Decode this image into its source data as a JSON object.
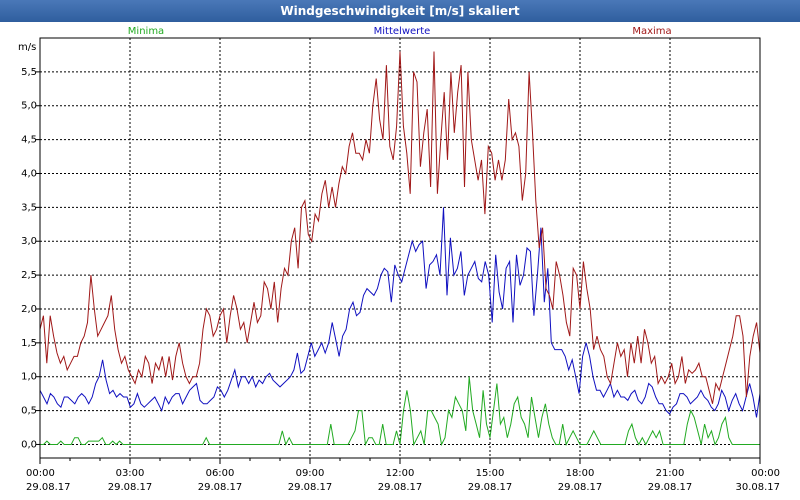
{
  "window": {
    "title": "Windgeschwindigkeit [m/s] skaliert"
  },
  "colors": {
    "min": "#22aa22",
    "avg": "#1010c0",
    "max": "#a01818",
    "grid": "#000000"
  },
  "chart_data": {
    "type": "line",
    "title": "Windgeschwindigkeit [m/s] skaliert",
    "ylabel": "m/s",
    "ylim": [
      -0.2,
      6.0
    ],
    "yticks": [
      0.0,
      0.5,
      1.0,
      1.5,
      2.0,
      2.5,
      3.0,
      3.5,
      4.0,
      4.5,
      5.0,
      5.5
    ],
    "ytick_labels": [
      "0,0",
      "0,5",
      "1,0",
      "1,5",
      "2,0",
      "2,5",
      "3,0",
      "3,5",
      "4,0",
      "4,5",
      "5,0",
      "5,5"
    ],
    "xlim_hours": [
      0,
      24
    ],
    "xticks": [
      {
        "h": 0,
        "time": "00:00",
        "date": "29.08.17"
      },
      {
        "h": 3,
        "time": "03:00",
        "date": "29.08.17"
      },
      {
        "h": 6,
        "time": "06:00",
        "date": "29.08.17"
      },
      {
        "h": 9,
        "time": "09:00",
        "date": "29.08.17"
      },
      {
        "h": 12,
        "time": "12:00",
        "date": "29.08.17"
      },
      {
        "h": 15,
        "time": "15:00",
        "date": "29.08.17"
      },
      {
        "h": 18,
        "time": "18:00",
        "date": "29.08.17"
      },
      {
        "h": 21,
        "time": "21:00",
        "date": "29.08.17"
      },
      {
        "h": 24,
        "time": "00:00",
        "date": "30.08.17"
      }
    ],
    "grid": true,
    "sample_step_minutes": 10,
    "series": [
      {
        "name": "Minima",
        "color_key": "min",
        "values": [
          0,
          0,
          0.05,
          0,
          0,
          0,
          0.05,
          0,
          0,
          0,
          0.1,
          0.1,
          0,
          0,
          0.05,
          0.05,
          0.05,
          0.05,
          0.1,
          0,
          0,
          0.05,
          0,
          0.05,
          0,
          0,
          0,
          0,
          0,
          0,
          0,
          0,
          0,
          0,
          0,
          0,
          0,
          0,
          0,
          0,
          0,
          0,
          0,
          0,
          0,
          0,
          0,
          0,
          0.1,
          0,
          0,
          0,
          0,
          0,
          0,
          0,
          0,
          0,
          0,
          0,
          0,
          0,
          0,
          0,
          0,
          0,
          0,
          0,
          0,
          0,
          0.2,
          0,
          0.1,
          0,
          0,
          0,
          0,
          0,
          0,
          0,
          0,
          0,
          0,
          0,
          0.3,
          0,
          0,
          0,
          0,
          0,
          0.1,
          0.2,
          0.5,
          0.5,
          0,
          0.1,
          0.1,
          0,
          0,
          0.3,
          0,
          0,
          0,
          0.2,
          0,
          0.5,
          0.8,
          0.5,
          0,
          0.1,
          0.2,
          0,
          0.5,
          0.5,
          0.4,
          0.3,
          0,
          0.1,
          0.5,
          0.4,
          0.7,
          0.6,
          0.5,
          0.2,
          1.0,
          0.5,
          0.3,
          0.1,
          0.8,
          0.3,
          0.1,
          0.5,
          0.9,
          0.3,
          0.4,
          0.1,
          0.3,
          0.6,
          0.7,
          0.4,
          0.3,
          0.1,
          0.7,
          0.4,
          0.1,
          0.4,
          0.6,
          0.3,
          0.1,
          0,
          0,
          0.3,
          0,
          0.1,
          0.2,
          0.1,
          0,
          0,
          0,
          0.1,
          0.2,
          0.1,
          0,
          0,
          0,
          0,
          0,
          0,
          0,
          0,
          0.2,
          0.3,
          0.1,
          0,
          0.1,
          0,
          0.1,
          0.2,
          0.1,
          0.2,
          0,
          0,
          0,
          0,
          0,
          0,
          0,
          0.3,
          0.5,
          0.4,
          0.2,
          0,
          0.3,
          0.1,
          0.2,
          0,
          0.1,
          0.3,
          0.4,
          0.1,
          0,
          0,
          0,
          0,
          0,
          0,
          0,
          0,
          0
        ]
      },
      {
        "name": "Mittelwerte",
        "color_key": "avg",
        "values": [
          0.8,
          0.7,
          0.6,
          0.75,
          0.7,
          0.6,
          0.55,
          0.7,
          0.7,
          0.65,
          0.6,
          0.7,
          0.75,
          0.7,
          0.6,
          0.7,
          0.9,
          1.0,
          1.25,
          0.95,
          0.75,
          0.8,
          0.7,
          0.75,
          0.7,
          0.7,
          0.55,
          0.6,
          0.75,
          0.6,
          0.55,
          0.6,
          0.65,
          0.7,
          0.6,
          0.5,
          0.7,
          0.6,
          0.7,
          0.75,
          0.75,
          0.6,
          0.7,
          0.8,
          0.85,
          0.9,
          0.65,
          0.6,
          0.6,
          0.65,
          0.7,
          0.85,
          0.8,
          0.7,
          0.8,
          0.95,
          1.1,
          0.85,
          1.0,
          1.0,
          0.9,
          1.0,
          0.85,
          0.95,
          0.9,
          1.0,
          1.05,
          0.95,
          0.9,
          0.85,
          0.9,
          0.95,
          1.0,
          1.1,
          1.35,
          1.05,
          1.1,
          1.3,
          1.5,
          1.3,
          1.4,
          1.5,
          1.35,
          1.5,
          1.8,
          1.55,
          1.3,
          1.6,
          1.7,
          2.0,
          2.1,
          1.9,
          1.95,
          2.2,
          2.3,
          2.25,
          2.2,
          2.3,
          2.5,
          2.6,
          2.55,
          2.1,
          2.65,
          2.5,
          2.4,
          2.6,
          2.8,
          3.0,
          2.85,
          2.95,
          3.0,
          2.3,
          2.65,
          2.7,
          2.8,
          2.5,
          3.5,
          2.2,
          3.05,
          2.5,
          2.6,
          2.85,
          2.2,
          2.5,
          2.6,
          2.7,
          2.45,
          2.4,
          2.7,
          2.5,
          1.8,
          2.8,
          2.25,
          2.0,
          2.6,
          2.7,
          1.8,
          2.8,
          2.35,
          2.5,
          2.9,
          2.85,
          1.9,
          2.5,
          3.2,
          2.1,
          2.6,
          1.5,
          1.4,
          1.4,
          1.4,
          1.3,
          1.1,
          1.25,
          1.0,
          0.75,
          1.3,
          1.5,
          1.3,
          1.0,
          0.8,
          0.8,
          0.7,
          0.8,
          0.9,
          0.7,
          0.8,
          0.7,
          0.7,
          0.65,
          0.75,
          0.8,
          0.65,
          0.6,
          0.7,
          0.9,
          0.85,
          0.7,
          0.6,
          0.6,
          0.5,
          0.45,
          0.55,
          0.6,
          0.75,
          0.75,
          0.7,
          0.6,
          0.65,
          0.7,
          0.8,
          0.7,
          0.65,
          0.55,
          0.5,
          0.6,
          0.8,
          0.7,
          0.5,
          0.65,
          0.75,
          0.6,
          0.5,
          0.7,
          0.9,
          0.7,
          0.4,
          0.75
        ]
      },
      {
        "name": "Maxima",
        "color_key": "max",
        "values": [
          1.7,
          1.9,
          1.2,
          1.9,
          1.6,
          1.35,
          1.2,
          1.3,
          1.1,
          1.2,
          1.3,
          1.3,
          1.5,
          1.6,
          1.8,
          2.5,
          2.0,
          1.6,
          1.7,
          1.8,
          1.9,
          2.2,
          1.7,
          1.4,
          1.2,
          1.3,
          1.1,
          1.0,
          0.9,
          1.1,
          1.0,
          1.3,
          1.2,
          0.9,
          1.2,
          1.1,
          1.3,
          1.0,
          1.3,
          0.95,
          1.3,
          1.5,
          1.2,
          1.0,
          0.9,
          1.0,
          1.0,
          1.2,
          1.7,
          2.0,
          1.9,
          1.6,
          1.7,
          1.9,
          2.0,
          1.5,
          1.9,
          2.2,
          2.0,
          1.7,
          1.8,
          1.5,
          1.8,
          2.1,
          1.8,
          1.9,
          2.4,
          2.3,
          2.0,
          2.4,
          1.8,
          2.3,
          2.6,
          2.5,
          3.0,
          3.2,
          2.6,
          3.5,
          3.6,
          3.1,
          3.0,
          3.4,
          3.3,
          3.7,
          3.9,
          3.5,
          3.8,
          3.5,
          3.85,
          4.1,
          4.0,
          4.4,
          4.6,
          4.3,
          4.3,
          4.2,
          4.5,
          4.3,
          5.0,
          5.4,
          4.8,
          4.5,
          5.6,
          4.4,
          4.2,
          4.7,
          5.8,
          4.7,
          4.3,
          3.7,
          5.5,
          5.35,
          4.1,
          4.6,
          4.95,
          3.8,
          5.8,
          3.7,
          4.5,
          5.2,
          4.2,
          5.5,
          4.6,
          5.2,
          5.6,
          3.8,
          5.5,
          4.5,
          4.2,
          3.9,
          4.2,
          3.4,
          4.4,
          4.3,
          3.9,
          4.2,
          3.9,
          4.2,
          5.1,
          4.5,
          4.6,
          4.4,
          3.6,
          4.0,
          5.5,
          4.6,
          3.6,
          2.9,
          3.2,
          2.3,
          2.2,
          2.0,
          2.7,
          2.5,
          2.2,
          1.8,
          1.6,
          2.6,
          2.5,
          2.0,
          2.7,
          2.3,
          2.0,
          1.4,
          1.6,
          1.4,
          1.3,
          1.0,
          0.9,
          1.2,
          1.5,
          1.3,
          1.4,
          1.0,
          1.5,
          1.2,
          1.6,
          1.2,
          1.7,
          1.5,
          1.2,
          1.3,
          0.9,
          1.0,
          0.9,
          1.0,
          1.2,
          0.9,
          1.0,
          1.3,
          0.9,
          1.1,
          1.05,
          1.1,
          1.2,
          1.0,
          1.0,
          0.8,
          0.6,
          0.9,
          0.8,
          1.0,
          1.2,
          1.4,
          1.6,
          1.9,
          1.9,
          1.6,
          0.7,
          1.3,
          1.6,
          1.8,
          1.35
        ]
      }
    ]
  }
}
